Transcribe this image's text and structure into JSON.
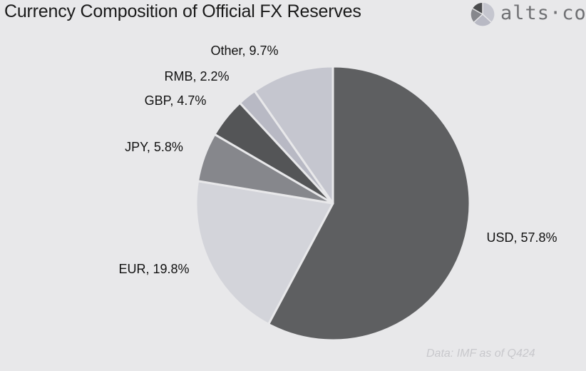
{
  "title": "Currency Composition of Official FX Reserves",
  "brand": {
    "text": "alts·co",
    "icon": "pie-logo-icon"
  },
  "footnote": "Data: IMF as of Q424",
  "chart_data": {
    "type": "pie",
    "title": "Currency Composition of Official FX Reserves",
    "slices": [
      {
        "label": "USD, 57.8%",
        "name": "USD",
        "value": 57.8,
        "color": "#5e5f61"
      },
      {
        "label": "EUR, 19.8%",
        "name": "EUR",
        "value": 19.8,
        "color": "#d3d4da"
      },
      {
        "label": "JPY, 5.8%",
        "name": "JPY",
        "value": 5.8,
        "color": "#86878c"
      },
      {
        "label": "GBP, 4.7%",
        "name": "GBP",
        "value": 4.7,
        "color": "#545557"
      },
      {
        "label": "RMB, 2.2%",
        "name": "RMB",
        "value": 2.2,
        "color": "#b8b9c4"
      },
      {
        "label": "Other, 9.7%",
        "name": "Other",
        "value": 9.7,
        "color": "#c5c6cf"
      }
    ],
    "start": "top",
    "direction": "clockwise"
  }
}
